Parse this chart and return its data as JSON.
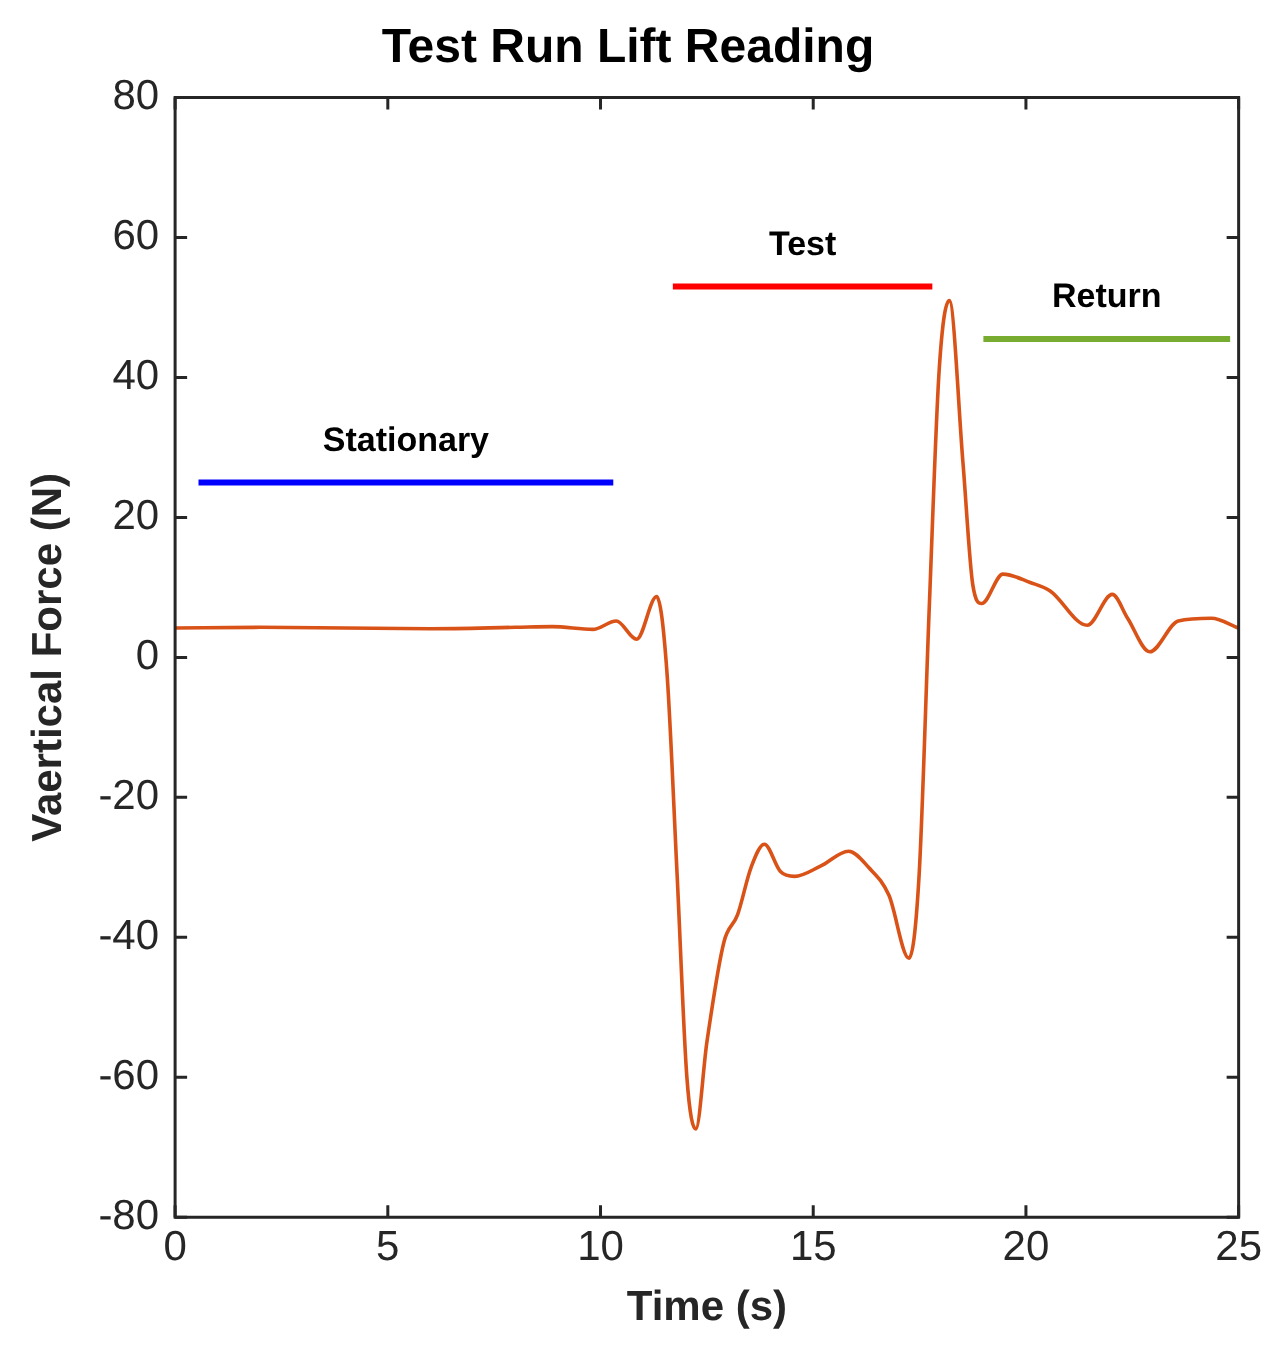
{
  "chart_data": {
    "type": "line",
    "title": "Test Run Lift Reading",
    "xlabel": "Time (s)",
    "ylabel": "Vaertical Force (N)",
    "xlim": [
      0,
      25
    ],
    "xticks": [
      0,
      5,
      10,
      15,
      20,
      25
    ],
    "ylim": [
      -80,
      80
    ],
    "yticks": [
      -80,
      -60,
      -40,
      -20,
      0,
      20,
      40,
      60,
      80
    ],
    "grid": false,
    "legend": false,
    "marker": "none",
    "line_style": "solid",
    "series": [
      {
        "color": "#d95319",
        "x": [
          0,
          2,
          4,
          6,
          8,
          8.87,
          9.82,
          10.37,
          10.85,
          11.32,
          11.56,
          11.8,
          12.03,
          12.24,
          12.5,
          12.9,
          13.22,
          13.54,
          13.85,
          14.23,
          14.56,
          15.18,
          15.83,
          16.3,
          16.78,
          17.25,
          17.49,
          17.73,
          17.96,
          18.2,
          18.52,
          18.75,
          18.96,
          19.46,
          20.1,
          20.57,
          21.44,
          22.03,
          22.39,
          22.91,
          23.58,
          24.36,
          25
        ],
        "values": [
          4.2,
          4.3,
          4.2,
          4.1,
          4.3,
          4.4,
          4,
          5.2,
          2.6,
          8.7,
          -2,
          -31,
          -60,
          -67.4,
          -55,
          -40.7,
          -36.8,
          -30,
          -26.7,
          -30.6,
          -31.3,
          -29.8,
          -27.7,
          -30,
          -34,
          -43,
          -31,
          7.5,
          41,
          51,
          27.8,
          10.4,
          7.7,
          11.9,
          10.7,
          9.5,
          4.6,
          9,
          5.6,
          0.8,
          5.2,
          5.6,
          4.2
        ]
      },
      {
        "name": "Stationary",
        "color": "#0000ff",
        "x": [
          0.55,
          10.3
        ],
        "values": [
          25,
          25
        ]
      },
      {
        "name": "Test",
        "color": "#ff0000",
        "x": [
          11.7,
          17.8
        ],
        "values": [
          53,
          53
        ]
      },
      {
        "name": "Return",
        "color": "#77ac30",
        "x": [
          19,
          24.8
        ],
        "values": [
          45.5,
          45.5
        ]
      }
    ]
  }
}
